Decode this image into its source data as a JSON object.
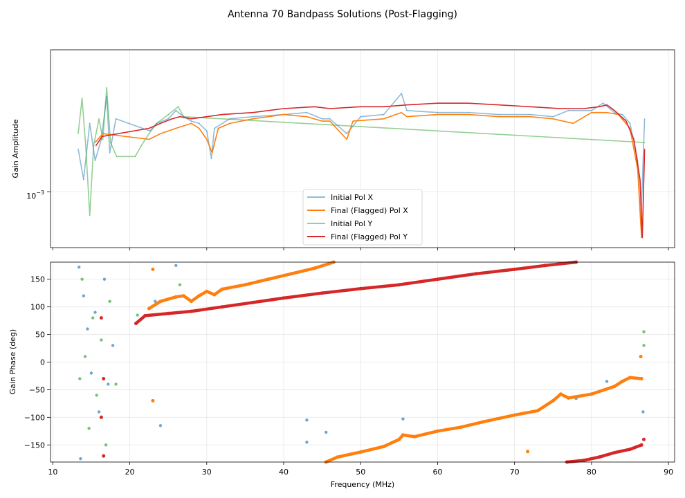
{
  "chart_data": {
    "type": "line",
    "title": "Antenna 70 Bandpass Solutions (Post-Flagging)",
    "xlabel": "Frequency (MHz)",
    "xlim": [
      9.7,
      90.8
    ],
    "xticks": [
      "10",
      "20",
      "30",
      "40",
      "50",
      "60",
      "70",
      "80",
      "90"
    ],
    "xtick_values": [
      10,
      20,
      30,
      40,
      50,
      60,
      70,
      80,
      90
    ],
    "legend_position": "lower-center",
    "series_styles": [
      {
        "name": "Initial Pol X",
        "color": "#1f77b4",
        "alpha": 0.5
      },
      {
        "name": "Final (Flagged) Pol X",
        "color": "#ff7f0e",
        "alpha": 1.0
      },
      {
        "name": "Initial Pol Y",
        "color": "#2ca02c",
        "alpha": 0.5
      },
      {
        "name": "Final (Flagged) Pol Y",
        "color": "#d62728",
        "alpha": 1.0
      }
    ],
    "amplitude_panel": {
      "ylabel": "Gain Amplitude",
      "yscale": "log",
      "ylim": [
        0.00043,
        0.0085
      ],
      "ytick_label": "10",
      "ytick_exponent": "−3",
      "series": [
        {
          "name": "Initial Pol X",
          "points": [
            [
              13.3,
              0.0019
            ],
            [
              14,
              0.0012
            ],
            [
              14.8,
              0.0028
            ],
            [
              15.5,
              0.0016
            ],
            [
              16.3,
              0.0022
            ],
            [
              17,
              0.0042
            ],
            [
              17.4,
              0.0018
            ],
            [
              18.2,
              0.003
            ],
            [
              22.6,
              0.0025
            ],
            [
              23.5,
              0.0028
            ],
            [
              25,
              0.003
            ],
            [
              26,
              0.0034
            ],
            [
              27,
              0.0031
            ],
            [
              28,
              0.0029
            ],
            [
              29,
              0.0028
            ],
            [
              30,
              0.0025
            ],
            [
              30.6,
              0.00165
            ],
            [
              31,
              0.0026
            ],
            [
              33,
              0.003
            ],
            [
              36,
              0.0031
            ],
            [
              40,
              0.0032
            ],
            [
              43,
              0.0033
            ],
            [
              45,
              0.003
            ],
            [
              46,
              0.003
            ],
            [
              48.2,
              0.0024
            ],
            [
              50,
              0.0031
            ],
            [
              53,
              0.0032
            ],
            [
              55.3,
              0.0044
            ],
            [
              56,
              0.0034
            ],
            [
              60,
              0.0033
            ],
            [
              64,
              0.0033
            ],
            [
              68,
              0.0032
            ],
            [
              72,
              0.0032
            ],
            [
              75,
              0.0031
            ],
            [
              77,
              0.0034
            ],
            [
              80,
              0.0034
            ],
            [
              81.5,
              0.0038
            ],
            [
              83,
              0.0033
            ],
            [
              84,
              0.0032
            ],
            [
              85,
              0.0028
            ],
            [
              86,
              0.0016
            ],
            [
              86.4,
              0.0006
            ],
            [
              86.9,
              0.003
            ]
          ]
        },
        {
          "name": "Final (Flagged) Pol X",
          "points": [
            [
              15.5,
              0.0021
            ],
            [
              16.5,
              0.0024
            ],
            [
              22.5,
              0.0022
            ],
            [
              24,
              0.0024
            ],
            [
              26,
              0.0026
            ],
            [
              28,
              0.0028
            ],
            [
              29,
              0.0026
            ],
            [
              30,
              0.0022
            ],
            [
              30.7,
              0.0018
            ],
            [
              31.5,
              0.0026
            ],
            [
              33,
              0.0028
            ],
            [
              36,
              0.003
            ],
            [
              40,
              0.0032
            ],
            [
              43,
              0.0031
            ],
            [
              45,
              0.0029
            ],
            [
              46,
              0.0029
            ],
            [
              48.2,
              0.0022
            ],
            [
              49,
              0.0029
            ],
            [
              53,
              0.003
            ],
            [
              55.3,
              0.0033
            ],
            [
              56,
              0.0031
            ],
            [
              60,
              0.0032
            ],
            [
              64,
              0.0032
            ],
            [
              68,
              0.0031
            ],
            [
              72,
              0.0031
            ],
            [
              75,
              0.003
            ],
            [
              77.6,
              0.0028
            ],
            [
              80,
              0.0033
            ],
            [
              82,
              0.0033
            ],
            [
              83.5,
              0.0032
            ],
            [
              85,
              0.0026
            ],
            [
              86,
              0.0014
            ],
            [
              86.5,
              0.0005
            ]
          ]
        },
        {
          "name": "Initial Pol Y",
          "points": [
            [
              13.3,
              0.0024
            ],
            [
              13.8,
              0.0041
            ],
            [
              14.3,
              0.0019
            ],
            [
              14.8,
              0.0007
            ],
            [
              15.3,
              0.002
            ],
            [
              16,
              0.003
            ],
            [
              16.5,
              0.0022
            ],
            [
              17,
              0.0048
            ],
            [
              17.5,
              0.0021
            ],
            [
              18.3,
              0.0017
            ],
            [
              20.7,
              0.0017
            ],
            [
              21.5,
              0.002
            ],
            [
              22.5,
              0.0024
            ],
            [
              23.5,
              0.0028
            ],
            [
              25,
              0.0032
            ],
            [
              26.3,
              0.0036
            ],
            [
              27,
              0.0031
            ],
            [
              86.9,
              0.0021
            ]
          ]
        },
        {
          "name": "Final (Flagged) Pol Y",
          "points": [
            [
              15.6,
              0.002
            ],
            [
              16.4,
              0.0023
            ],
            [
              22.5,
              0.0026
            ],
            [
              24,
              0.0028
            ],
            [
              25.5,
              0.003
            ],
            [
              26.5,
              0.0031
            ],
            [
              28,
              0.003
            ],
            [
              30,
              0.0031
            ],
            [
              32,
              0.0032
            ],
            [
              36,
              0.0033
            ],
            [
              40,
              0.0035
            ],
            [
              44,
              0.0036
            ],
            [
              46,
              0.0035
            ],
            [
              50,
              0.0036
            ],
            [
              53,
              0.0036
            ],
            [
              56,
              0.0037
            ],
            [
              60,
              0.0038
            ],
            [
              64,
              0.0038
            ],
            [
              68,
              0.0037
            ],
            [
              72,
              0.0036
            ],
            [
              76,
              0.0035
            ],
            [
              79,
              0.0035
            ],
            [
              81,
              0.0036
            ],
            [
              82,
              0.0037
            ],
            [
              83,
              0.0034
            ],
            [
              84.5,
              0.0029
            ],
            [
              85.5,
              0.0022
            ],
            [
              86.3,
              0.0012
            ],
            [
              86.6,
              0.0005
            ],
            [
              86.9,
              0.0019
            ]
          ]
        }
      ]
    },
    "phase_panel": {
      "ylabel": "Gain Phase (deg)",
      "ylim": [
        -181,
        181
      ],
      "yticks": [
        "150",
        "100",
        "50",
        "0",
        "−50",
        "−100",
        "−150"
      ],
      "ytick_values": [
        150,
        100,
        50,
        0,
        -50,
        -100,
        -150
      ],
      "series": [
        {
          "name": "Final (Flagged) Pol X",
          "segments": [
            [
              [
                22.5,
                97
              ],
              [
                24,
                110
              ],
              [
                26,
                118
              ],
              [
                27,
                120
              ],
              [
                28,
                110
              ],
              [
                29,
                120
              ],
              [
                30,
                128
              ],
              [
                31,
                122
              ],
              [
                32,
                132
              ],
              [
                35,
                140
              ],
              [
                38,
                150
              ],
              [
                41,
                160
              ],
              [
                44,
                170
              ],
              [
                46.5,
                181
              ]
            ],
            [
              [
                45.5,
                -181
              ],
              [
                47,
                -172
              ],
              [
                50,
                -163
              ],
              [
                53,
                -153
              ],
              [
                55,
                -140
              ],
              [
                55.5,
                -132
              ],
              [
                57,
                -135
              ],
              [
                60,
                -125
              ],
              [
                63,
                -118
              ],
              [
                66,
                -108
              ],
              [
                70,
                -96
              ],
              [
                73,
                -88
              ],
              [
                75,
                -70
              ],
              [
                76,
                -58
              ],
              [
                77,
                -65
              ],
              [
                80,
                -58
              ],
              [
                83,
                -44
              ],
              [
                84,
                -35
              ],
              [
                85,
                -28
              ],
              [
                86.5,
                -30
              ]
            ]
          ]
        },
        {
          "name": "Final (Flagged) Pol Y",
          "segments": [
            [
              [
                20.8,
                70
              ],
              [
                22,
                84
              ],
              [
                25,
                88
              ],
              [
                28,
                92
              ],
              [
                32,
                100
              ],
              [
                36,
                108
              ],
              [
                40,
                116
              ],
              [
                45,
                125
              ],
              [
                50,
                133
              ],
              [
                55,
                140
              ],
              [
                60,
                150
              ],
              [
                65,
                160
              ],
              [
                70,
                168
              ],
              [
                74,
                175
              ],
              [
                78,
                181
              ]
            ],
            [
              [
                76.8,
                -181
              ],
              [
                79,
                -178
              ],
              [
                81,
                -172
              ],
              [
                83,
                -164
              ],
              [
                85,
                -158
              ],
              [
                86.5,
                -150
              ]
            ]
          ]
        },
        {
          "name": "Initial Pol X",
          "scatter": [
            [
              13.4,
              172
            ],
            [
              13.6,
              -175
            ],
            [
              14,
              120
            ],
            [
              14.5,
              60
            ],
            [
              15,
              -20
            ],
            [
              15.5,
              90
            ],
            [
              16,
              -90
            ],
            [
              16.7,
              150
            ],
            [
              17.2,
              -40
            ],
            [
              17.8,
              30
            ],
            [
              23.3,
              110
            ],
            [
              24,
              -115
            ],
            [
              26,
              175
            ],
            [
              43,
              -105
            ],
            [
              43,
              -145
            ],
            [
              45.5,
              -127
            ],
            [
              55.5,
              -103
            ],
            [
              78,
              -66
            ],
            [
              82,
              -35
            ],
            [
              86.7,
              -90
            ]
          ]
        },
        {
          "name": "Initial Pol Y",
          "scatter": [
            [
              13.5,
              -30
            ],
            [
              13.8,
              150
            ],
            [
              14.2,
              10
            ],
            [
              14.7,
              -120
            ],
            [
              15.2,
              80
            ],
            [
              15.7,
              -60
            ],
            [
              16.3,
              40
            ],
            [
              16.9,
              -150
            ],
            [
              17.4,
              110
            ],
            [
              18.2,
              -40
            ],
            [
              21,
              85
            ],
            [
              26.5,
              140
            ],
            [
              86.8,
              55
            ],
            [
              86.8,
              30
            ]
          ]
        }
      ],
      "flagged_scatter": [
        {
          "name": "Final (Flagged) Pol X",
          "points": [
            [
              23,
              168
            ],
            [
              23,
              -70
            ],
            [
              71.7,
              -162
            ],
            [
              86.4,
              10
            ]
          ]
        },
        {
          "name": "Final (Flagged) Pol Y",
          "points": [
            [
              16.3,
              -100
            ],
            [
              16.6,
              -170
            ],
            [
              16.3,
              80
            ],
            [
              16.6,
              -30
            ],
            [
              86.8,
              -140
            ]
          ]
        }
      ]
    }
  }
}
